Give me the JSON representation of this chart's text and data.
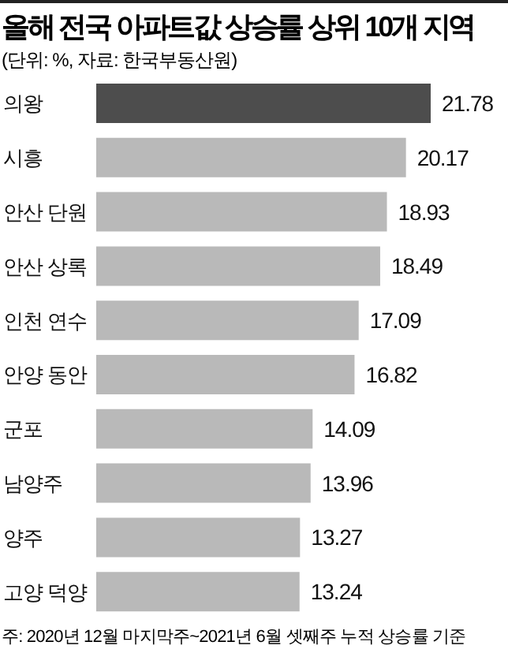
{
  "chart_data": {
    "type": "bar",
    "orientation": "horizontal",
    "title": "올해 전국 아파트값 상승률 상위 10개 지역",
    "subtitle": "(단위: %, 자료: 한국부동산원)",
    "categories": [
      "의왕",
      "시흥",
      "안산 단원",
      "안산 상록",
      "인천 연수",
      "안양 동안",
      "군포",
      "남양주",
      "양주",
      "고양 덕양"
    ],
    "values": [
      21.78,
      20.17,
      18.93,
      18.49,
      17.09,
      16.82,
      14.09,
      13.96,
      13.27,
      13.24
    ],
    "colors": [
      "#4d4d4d",
      "#b9b9b9",
      "#b9b9b9",
      "#b9b9b9",
      "#b9b9b9",
      "#b9b9b9",
      "#b9b9b9",
      "#b9b9b9",
      "#b9b9b9",
      "#b9b9b9"
    ],
    "data_labels": true,
    "grid": false,
    "legend": false,
    "annotations": [
      "주: 2020년 12월 마지막주~2021년 6월 셋째주 누적 상승률 기준"
    ]
  }
}
